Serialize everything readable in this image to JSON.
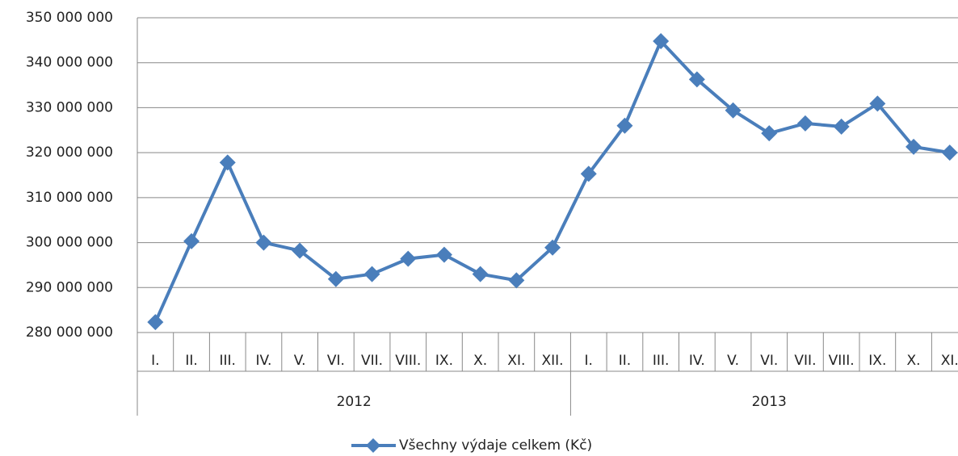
{
  "chart_data": {
    "type": "line",
    "groups": [
      {
        "name": "2012",
        "categories": [
          "I.",
          "II.",
          "III.",
          "IV.",
          "V.",
          "VI.",
          "VII.",
          "VIII.",
          "IX.",
          "X.",
          "XI.",
          "XII."
        ]
      },
      {
        "name": "2013",
        "categories": [
          "I.",
          "II.",
          "III.",
          "IV.",
          "V.",
          "VI.",
          "VII.",
          "VIII.",
          "IX.",
          "X.",
          "XI."
        ]
      }
    ],
    "series": [
      {
        "name": "Všechny výdaje celkem (Kč)",
        "color": "#4a7ebb",
        "values": [
          282300000,
          300300000,
          317800000,
          300000000,
          298200000,
          291900000,
          293000000,
          296400000,
          297300000,
          293000000,
          291600000,
          298900000,
          315300000,
          326000000,
          344800000,
          336300000,
          329400000,
          324300000,
          326500000,
          325800000,
          330900000,
          321300000,
          320000000
        ]
      }
    ],
    "ylim": [
      280000000,
      350000000
    ],
    "yticks": [
      {
        "value": 280000000,
        "label": "280 000 000"
      },
      {
        "value": 290000000,
        "label": "290 000 000"
      },
      {
        "value": 300000000,
        "label": "300 000 000"
      },
      {
        "value": 310000000,
        "label": "310 000 000"
      },
      {
        "value": 320000000,
        "label": "320 000 000"
      },
      {
        "value": 330000000,
        "label": "330 000 000"
      },
      {
        "value": 340000000,
        "label": "340 000 000"
      },
      {
        "value": 350000000,
        "label": "350 000 000"
      }
    ],
    "grid": true,
    "legend": "bottom"
  }
}
